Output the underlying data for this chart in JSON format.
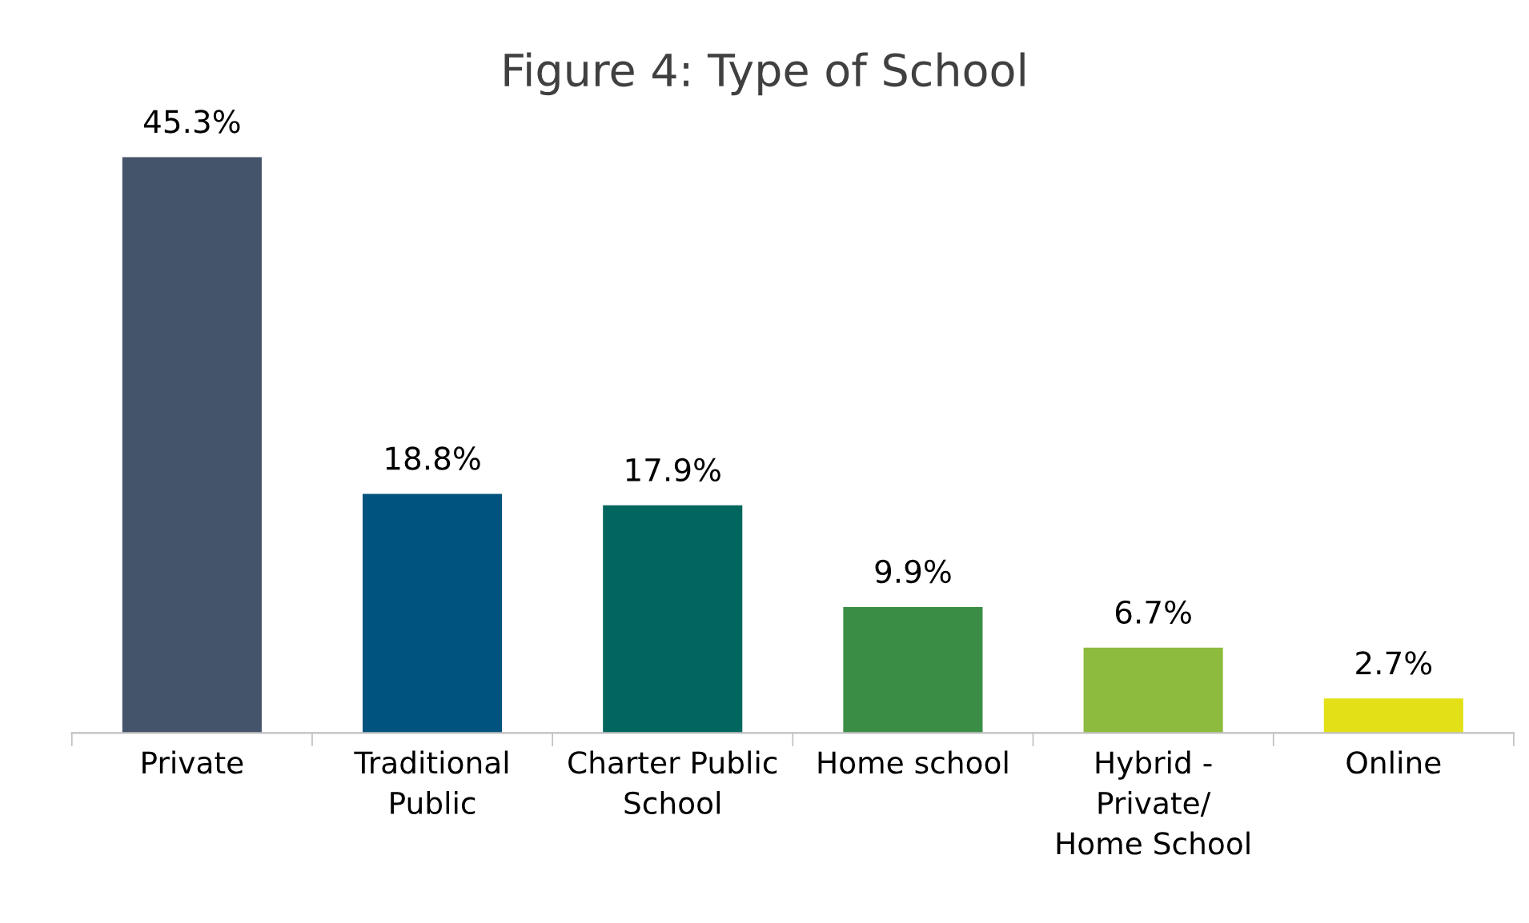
{
  "chart_data": {
    "type": "bar",
    "title": "Figure 4: Type of School",
    "categories": [
      "Private",
      "Traditional\nPublic",
      "Charter Public\nSchool",
      "Home school",
      "Hybrid -\nPrivate/\nHome School",
      "Online"
    ],
    "values": [
      45.3,
      18.8,
      17.9,
      9.9,
      6.7,
      2.7
    ],
    "colors": [
      "#44546a",
      "#00537e",
      "#00665e",
      "#3a8d44",
      "#8dbb3e",
      "#e3e018"
    ],
    "value_labels": [
      "45.3%",
      "18.8%",
      "17.9%",
      "9.9%",
      "6.7%",
      "2.7%"
    ],
    "grid": false,
    "legend": false
  }
}
